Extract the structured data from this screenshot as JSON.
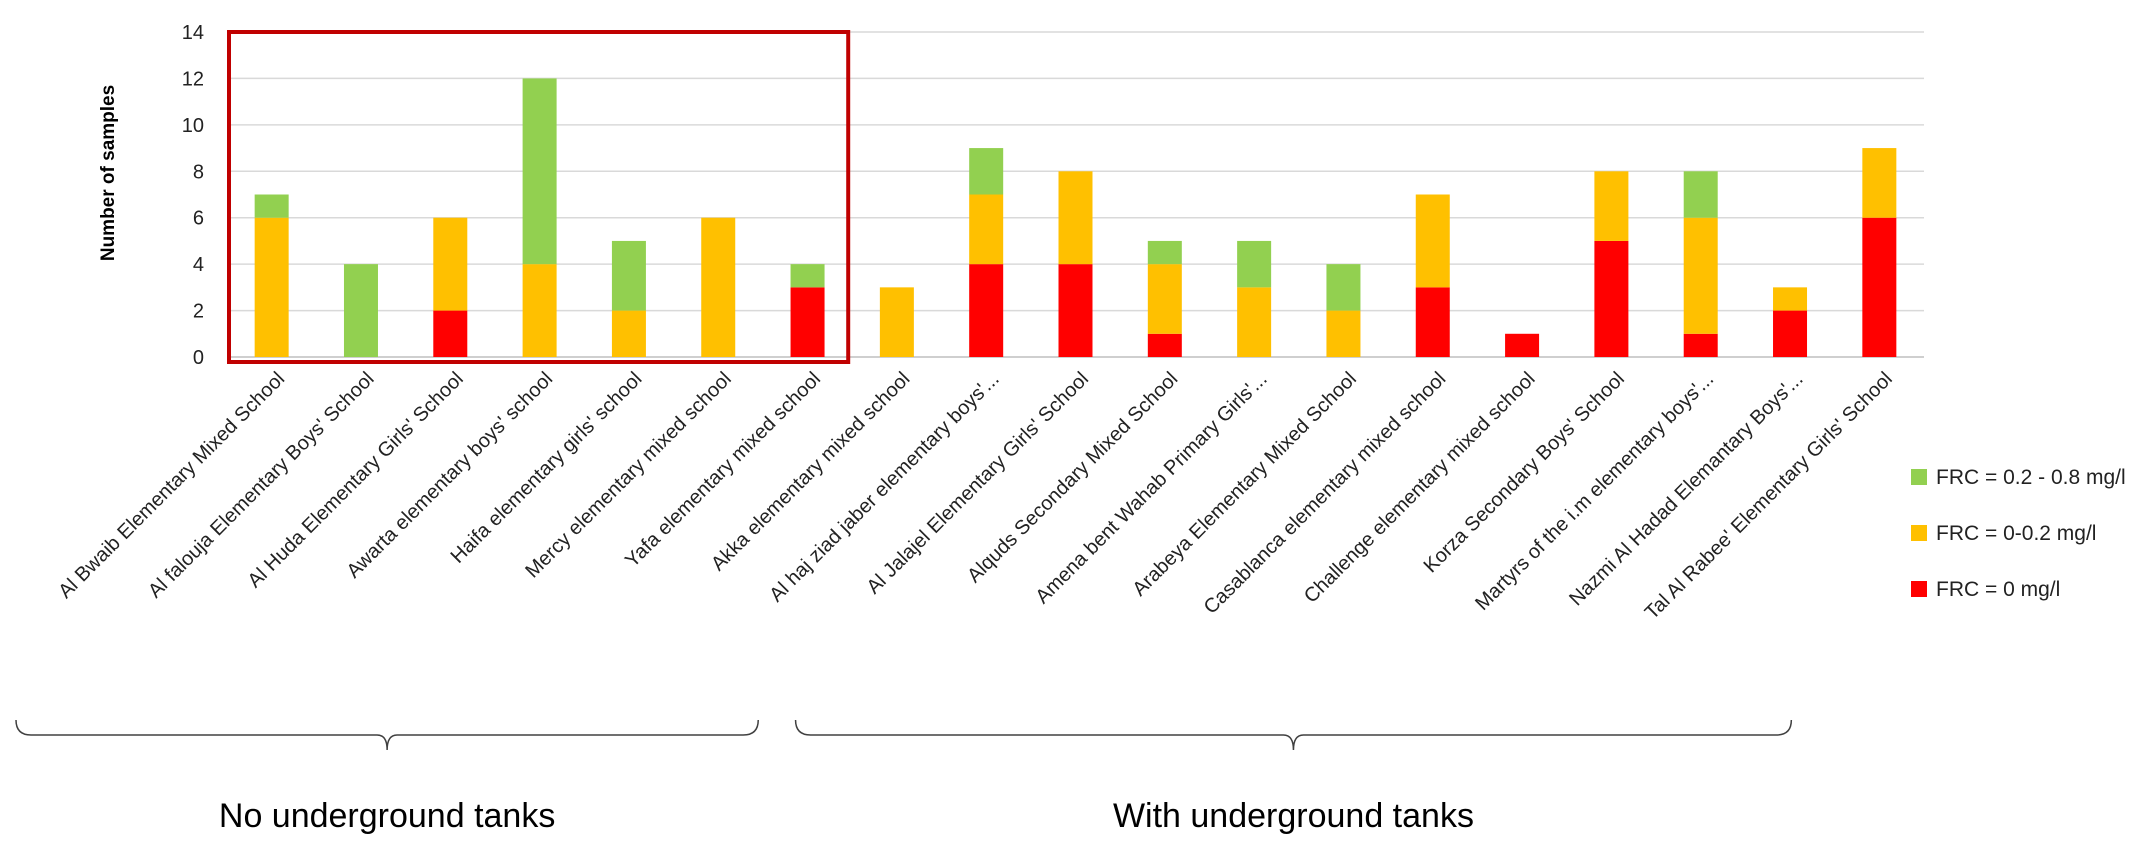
{
  "chart_data": {
    "type": "bar",
    "stacked": true,
    "ylabel": "Number of samples",
    "xlabel": "",
    "ylim": [
      0,
      14
    ],
    "yticks": [
      0,
      2,
      4,
      6,
      8,
      10,
      12,
      14
    ],
    "grid": true,
    "legend_position": "right",
    "categories": [
      "Al Bwaib Elementary Mixed School",
      "Al falouja Elementary Boys' School",
      "Al Huda Elementary Girls' School",
      "Awarta elementary boys' school",
      "Haifa elementary girls' school",
      "Mercy elementary mixed school",
      "Yafa elementary mixed school",
      "Akka elementary mixed school",
      "Al haj ziad jaber elementary boys'...",
      "Al Jalajel Elementary Girls' School",
      "Alquds Secondary Mixed School",
      "Amena bent Wahab Primary Girls'...",
      "Arabeya Elementary Mixed School",
      "Casablanca elementary mixed school",
      "Challenge elementary mixed school",
      "Korza Secondary Boys' School",
      "Martyrs of the i.m elementary boys'...",
      "Nazmi Al Hadad Elemantary Boys'...",
      "Tal Al Rabee' Elementary Girls' School"
    ],
    "series": [
      {
        "name": "FRC = 0 mg/l",
        "color": "#ff0000",
        "values": [
          0,
          0,
          2,
          0,
          0,
          0,
          3,
          0,
          4,
          4,
          1,
          0,
          0,
          3,
          1,
          5,
          1,
          2,
          6
        ]
      },
      {
        "name": "FRC = 0-0.2 mg/l",
        "color": "#ffc000",
        "values": [
          6,
          0,
          4,
          4,
          2,
          6,
          0,
          3,
          3,
          4,
          3,
          3,
          2,
          4,
          0,
          3,
          5,
          1,
          3
        ]
      },
      {
        "name": "FRC = 0.2 - 0.8 mg/l",
        "color": "#92d050",
        "values": [
          1,
          4,
          0,
          8,
          3,
          0,
          1,
          0,
          2,
          0,
          1,
          2,
          2,
          0,
          0,
          0,
          2,
          0,
          0
        ]
      }
    ],
    "legend_order": [
      2,
      1,
      0
    ],
    "highlight": {
      "from_index": 0,
      "to_index": 6,
      "color": "#c00000"
    },
    "groups": [
      {
        "label": "No underground tanks",
        "from_index": 0,
        "to_index": 5
      },
      {
        "label": "With underground tanks",
        "from_index": 6,
        "to_index": 18
      }
    ]
  }
}
